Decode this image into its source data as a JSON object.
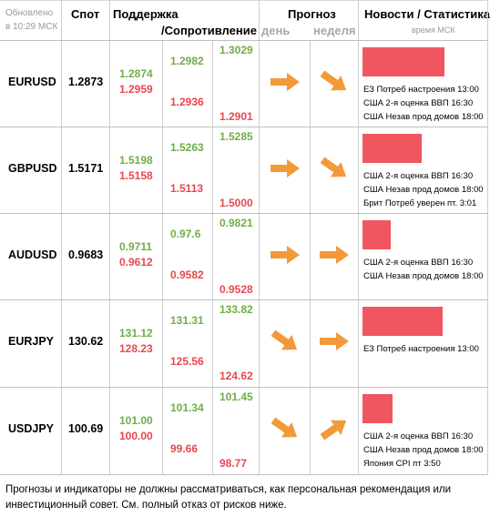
{
  "header": {
    "updated_line1": "Обновлено",
    "updated_line2": "в 10:29 МСК",
    "spot": "Спот",
    "support": "Поддержка",
    "resistance": "/Сопротивление",
    "forecast": "Прогноз",
    "day": "день",
    "week": "неделя",
    "news": "Новости / Статистика",
    "news_time": "время МСК"
  },
  "colors": {
    "support": "#70ad47",
    "resistance": "#e8474f",
    "arrow": "#f29a3a",
    "bar": "#ef5660"
  },
  "rows": [
    {
      "pair": "EURUSD",
      "spot": "1.2873",
      "s1": "1.2874",
      "s2": "1.2982",
      "s3": "1.3029",
      "r1": "1.2959",
      "r2": "1.2936",
      "r3": "1.2901",
      "day": "right",
      "week": "down-right",
      "bar": 0.93,
      "news": [
        "ЕЗ Потреб настроения 13:00",
        "США 2-я оценка ВВП 16:30",
        "США Незав прод домов 18:00"
      ]
    },
    {
      "pair": "GBPUSD",
      "spot": "1.5171",
      "s1": "1.5198",
      "s2": "1.5263",
      "s3": "1.5285",
      "r1": "1.5158",
      "r2": "1.5113",
      "r3": "1.5000",
      "day": "right",
      "week": "down-right",
      "bar": 0.67,
      "news": [
        "США 2-я оценка ВВП 16:30",
        "США Незав прод домов 18:00",
        "Брит Потреб уверен пт. 3:01"
      ]
    },
    {
      "pair": "AUDUSD",
      "spot": "0.9683",
      "s1": "0.9711",
      "s2": "0.97.6",
      "s3": "0.9821",
      "r1": "0.9612",
      "r2": "0.9582",
      "r3": "0.9528",
      "day": "right",
      "week": "right",
      "bar": 0.32,
      "news": [
        "США 2-я оценка ВВП 16:30",
        "США Незав прод домов 18:00"
      ]
    },
    {
      "pair": "EURJPY",
      "spot": "130.62",
      "s1": "131.12",
      "s2": "131.31",
      "s3": "133.82",
      "r1": "128.23",
      "r2": "125.56",
      "r3": "124.62",
      "day": "down-right",
      "week": "right",
      "bar": 0.91,
      "news": [
        "ЕЗ Потреб настроения 13:00"
      ]
    },
    {
      "pair": "USDJPY",
      "spot": "100.69",
      "s1": "101.00",
      "s2": "101.34",
      "s3": "101.45",
      "r1": "100.00",
      "r2": "99.66",
      "r3": "98.77",
      "day": "down-right",
      "week": "up-right",
      "bar": 0.34,
      "news": [
        "США 2-я оценка ВВП 16:30",
        "США Незав прод домов 18:00",
        "Япония CPI пт 3:50"
      ]
    }
  ],
  "disclaimer": {
    "line1": "Прогнозы и индикаторы не должны рассматриваться, как персональная рекомендация или",
    "line2": "инвестиционный совет. См. полный отказ от рисков ниже."
  }
}
